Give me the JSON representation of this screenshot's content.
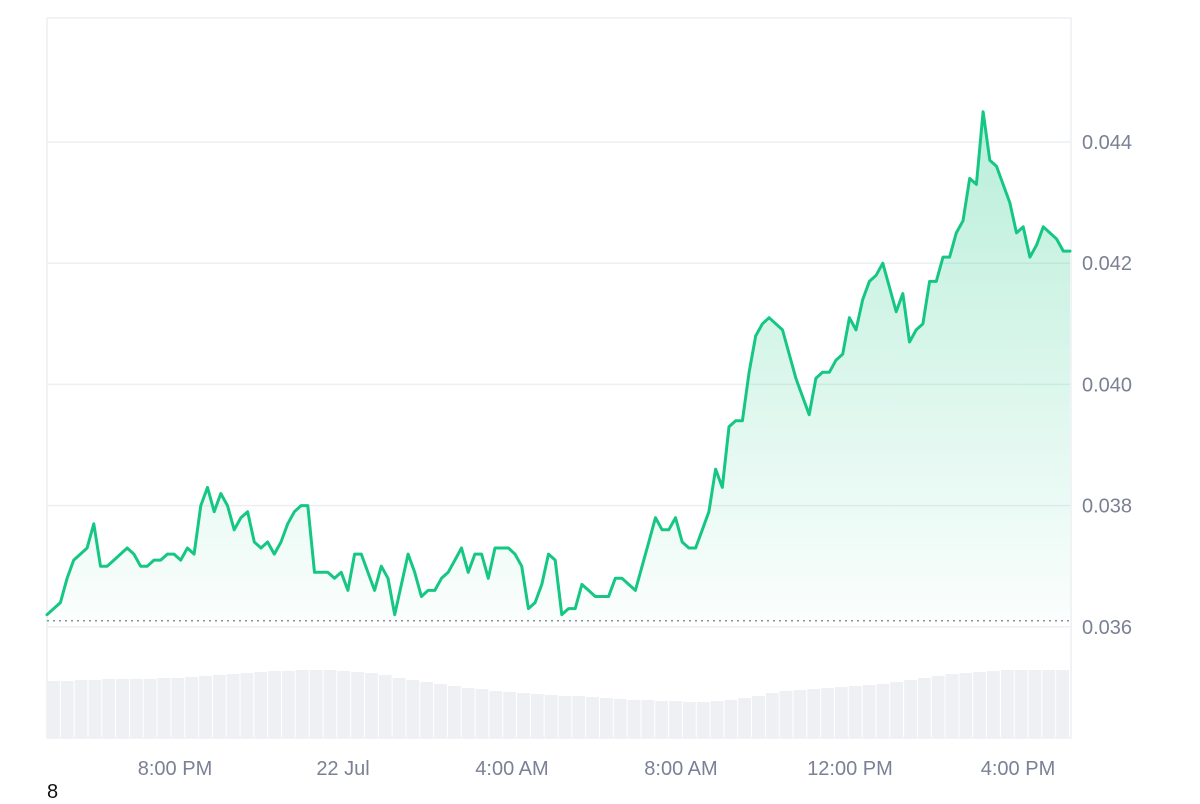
{
  "chart_data": {
    "type": "area",
    "x_ticks": [
      "8:00 PM",
      "22 Jul",
      "4:00 AM",
      "8:00 AM",
      "12:00 PM",
      "4:00 PM"
    ],
    "y_ticks": [
      "0.044",
      "0.042",
      "0.040",
      "0.038",
      "0.036"
    ],
    "ylim": [
      0.034,
      0.046
    ],
    "reference_value": 0.0361,
    "price": [
      0.0362,
      0.0363,
      0.0364,
      0.0368,
      0.0371,
      0.0372,
      0.0373,
      0.0377,
      0.037,
      0.037,
      0.0371,
      0.0372,
      0.0373,
      0.0372,
      0.037,
      0.037,
      0.0371,
      0.0371,
      0.0372,
      0.0372,
      0.0371,
      0.0373,
      0.0372,
      0.038,
      0.0383,
      0.0379,
      0.0382,
      0.038,
      0.0376,
      0.0378,
      0.0379,
      0.0374,
      0.0373,
      0.0374,
      0.0372,
      0.0374,
      0.0377,
      0.0379,
      0.038,
      0.038,
      0.0369,
      0.0369,
      0.0369,
      0.0368,
      0.0369,
      0.0366,
      0.0372,
      0.0372,
      0.0369,
      0.0366,
      0.037,
      0.0368,
      0.0362,
      0.0367,
      0.0372,
      0.0369,
      0.0365,
      0.0366,
      0.0366,
      0.0368,
      0.0369,
      0.0371,
      0.0373,
      0.0369,
      0.0372,
      0.0372,
      0.0368,
      0.0373,
      0.0373,
      0.0373,
      0.0372,
      0.037,
      0.0363,
      0.0364,
      0.0367,
      0.0372,
      0.0371,
      0.0362,
      0.0363,
      0.0363,
      0.0367,
      0.0366,
      0.0365,
      0.0365,
      0.0365,
      0.0368,
      0.0368,
      0.0367,
      0.0366,
      0.037,
      0.0374,
      0.0378,
      0.0376,
      0.0376,
      0.0378,
      0.0374,
      0.0373,
      0.0373,
      0.0376,
      0.0379,
      0.0386,
      0.0383,
      0.0393,
      0.0394,
      0.0394,
      0.0402,
      0.0408,
      0.041,
      0.0411,
      0.041,
      0.0409,
      0.0405,
      0.0401,
      0.0398,
      0.0395,
      0.0401,
      0.0402,
      0.0402,
      0.0404,
      0.0405,
      0.0411,
      0.0409,
      0.0414,
      0.0417,
      0.0418,
      0.042,
      0.0416,
      0.0412,
      0.0415,
      0.0407,
      0.0409,
      0.041,
      0.0417,
      0.0417,
      0.0421,
      0.0421,
      0.0425,
      0.0427,
      0.0434,
      0.0433,
      0.0445,
      0.0437,
      0.0436,
      0.0433,
      0.043,
      0.0425,
      0.0426,
      0.0421,
      0.0423,
      0.0426,
      0.0425,
      0.0424,
      0.0422,
      0.0422
    ],
    "volume": [
      0.57,
      0.57,
      0.58,
      0.58,
      0.59,
      0.59,
      0.59,
      0.59,
      0.6,
      0.6,
      0.61,
      0.62,
      0.63,
      0.64,
      0.65,
      0.66,
      0.67,
      0.67,
      0.68,
      0.68,
      0.68,
      0.67,
      0.66,
      0.65,
      0.63,
      0.6,
      0.58,
      0.56,
      0.54,
      0.52,
      0.5,
      0.49,
      0.47,
      0.46,
      0.45,
      0.44,
      0.43,
      0.42,
      0.42,
      0.41,
      0.4,
      0.39,
      0.38,
      0.38,
      0.37,
      0.37,
      0.36,
      0.36,
      0.37,
      0.38,
      0.4,
      0.42,
      0.45,
      0.47,
      0.48,
      0.49,
      0.5,
      0.51,
      0.52,
      0.53,
      0.54,
      0.56,
      0.58,
      0.6,
      0.62,
      0.64,
      0.65,
      0.66,
      0.67,
      0.68,
      0.68,
      0.68,
      0.68,
      0.68
    ]
  },
  "footer": {
    "note": "8"
  }
}
